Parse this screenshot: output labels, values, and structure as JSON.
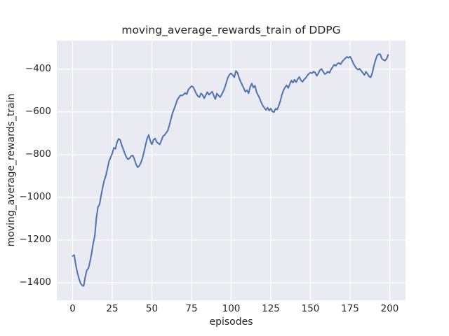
{
  "chart_data": {
    "type": "line",
    "title": "moving_average_rewards_train of DDPG",
    "xlabel": "episodes",
    "ylabel": "moving_average_rewards_train",
    "grid": true,
    "legend": false,
    "xlim": [
      -9.95,
      209.95
    ],
    "ylim": [
      -1482,
      -266
    ],
    "x_ticks": [
      {
        "value": 0,
        "label": "0"
      },
      {
        "value": 25,
        "label": "25"
      },
      {
        "value": 50,
        "label": "50"
      },
      {
        "value": 75,
        "label": "75"
      },
      {
        "value": 100,
        "label": "100"
      },
      {
        "value": 125,
        "label": "125"
      },
      {
        "value": 150,
        "label": "150"
      },
      {
        "value": 175,
        "label": "175"
      },
      {
        "value": 200,
        "label": "200"
      }
    ],
    "y_ticks": [
      {
        "value": -400,
        "label": "−400"
      },
      {
        "value": -600,
        "label": "−600"
      },
      {
        "value": -800,
        "label": "−800"
      },
      {
        "value": -1000,
        "label": "−1000"
      },
      {
        "value": -1200,
        "label": "−1200"
      },
      {
        "value": -1400,
        "label": "−1400"
      }
    ],
    "series": [
      {
        "name": "moving_average_rewards_train",
        "x_start": 0,
        "x_step": 1,
        "y": [
          -1275,
          -1270,
          -1316,
          -1352,
          -1380,
          -1402,
          -1412,
          -1415,
          -1372,
          -1340,
          -1332,
          -1300,
          -1262,
          -1215,
          -1180,
          -1095,
          -1045,
          -1033,
          -990,
          -952,
          -920,
          -897,
          -865,
          -830,
          -813,
          -795,
          -768,
          -773,
          -742,
          -726,
          -731,
          -756,
          -776,
          -796,
          -813,
          -822,
          -816,
          -806,
          -804,
          -822,
          -845,
          -859,
          -853,
          -839,
          -818,
          -788,
          -755,
          -725,
          -708,
          -736,
          -752,
          -731,
          -724,
          -740,
          -747,
          -752,
          -733,
          -714,
          -708,
          -698,
          -688,
          -663,
          -634,
          -606,
          -586,
          -566,
          -544,
          -532,
          -522,
          -523,
          -519,
          -511,
          -517,
          -495,
          -487,
          -479,
          -483,
          -498,
          -515,
          -526,
          -531,
          -513,
          -521,
          -536,
          -521,
          -507,
          -520,
          -512,
          -505,
          -523,
          -540,
          -514,
          -523,
          -531,
          -519,
          -504,
          -486,
          -461,
          -438,
          -425,
          -419,
          -428,
          -438,
          -408,
          -417,
          -441,
          -459,
          -474,
          -490,
          -506,
          -498,
          -513,
          -483,
          -467,
          -486,
          -477,
          -507,
          -522,
          -537,
          -556,
          -571,
          -581,
          -591,
          -580,
          -594,
          -584,
          -598,
          -601,
          -585,
          -589,
          -571,
          -549,
          -520,
          -499,
          -484,
          -476,
          -488,
          -469,
          -453,
          -463,
          -449,
          -461,
          -446,
          -436,
          -452,
          -459,
          -448,
          -441,
          -430,
          -421,
          -416,
          -419,
          -411,
          -416,
          -431,
          -419,
          -404,
          -399,
          -411,
          -423,
          -419,
          -411,
          -417,
          -401,
          -390,
          -379,
          -384,
          -374,
          -371,
          -377,
          -365,
          -356,
          -349,
          -342,
          -347,
          -341,
          -354,
          -372,
          -385,
          -396,
          -402,
          -398,
          -407,
          -417,
          -427,
          -412,
          -422,
          -434,
          -438,
          -418,
          -385,
          -358,
          -337,
          -329,
          -330,
          -350,
          -356,
          -360,
          -352,
          -333
        ]
      }
    ],
    "colors": {
      "line": "#4c72b0",
      "plot_background": "#eaeaf2",
      "gridline": "#ffffff",
      "text": "#262626",
      "figure_background": "#ffffff"
    }
  }
}
